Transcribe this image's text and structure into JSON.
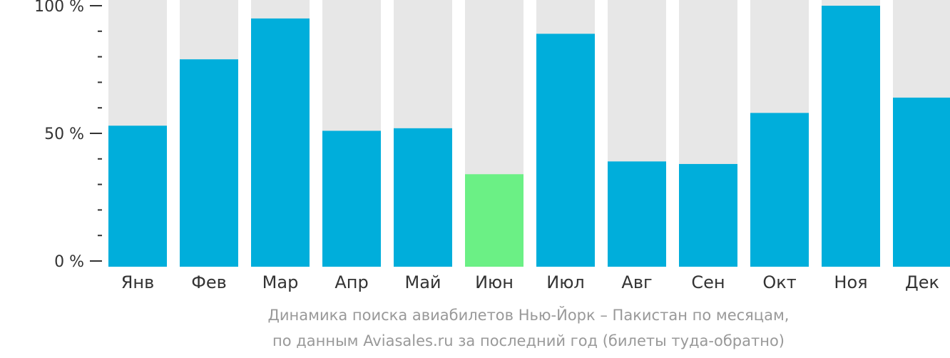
{
  "chart_data": {
    "type": "bar",
    "categories": [
      "Янв",
      "Фев",
      "Мар",
      "Апр",
      "Май",
      "Июн",
      "Июл",
      "Авг",
      "Сен",
      "Окт",
      "Ноя",
      "Дек"
    ],
    "values": [
      53,
      79,
      95,
      51,
      52,
      34,
      89,
      39,
      38,
      58,
      100,
      64
    ],
    "ylim": [
      0,
      100
    ],
    "y_ticks": [
      {
        "value": 0,
        "label": "0 %"
      },
      {
        "value": 50,
        "label": "50 %"
      },
      {
        "value": 100,
        "label": "100 %"
      }
    ],
    "minor_tick_step": 10,
    "highlight_index": 5,
    "colors": {
      "bar": "#00AEDB",
      "highlight": "#6BF085",
      "background_bar": "#E7E7E7",
      "axis": "#333333"
    },
    "caption": [
      "Динамика поиска авиабилетов Нью-Йорк – Пакистан по месяцам,",
      "по данным Aviasales.ru за последний год (билеты туда-обратно)"
    ]
  }
}
